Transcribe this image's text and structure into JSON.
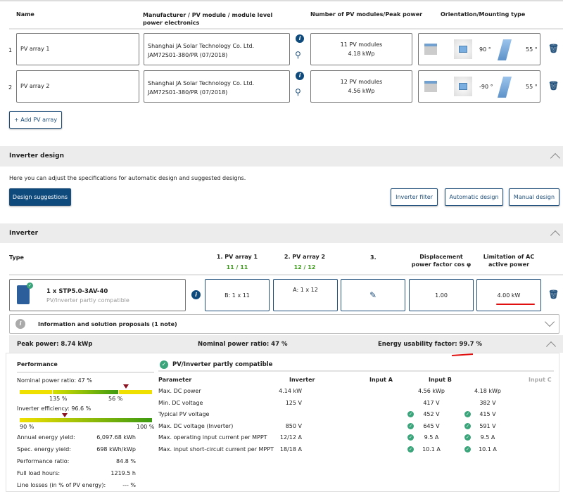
{
  "arrays": {
    "headers": [
      "Name",
      "Manufacturer / PV module / module level power electronics",
      "Number of PV modules/Peak power",
      "Orientation/Mounting type"
    ],
    "rows": [
      {
        "index": "1",
        "name": "PV array 1",
        "manufacturer": "Shanghai JA Solar Technology Co. Ltd.",
        "module": "JAM72S01-380/PR (07/2018)",
        "modules": "11 PV modules",
        "peak": "4.18 kWp",
        "azimuth": "90 °",
        "tilt": "55 °"
      },
      {
        "index": "2",
        "name": "PV array 2",
        "manufacturer": "Shanghai JA Solar Technology Co. Ltd.",
        "module": "JAM72S01-380/PR (07/2018)",
        "modules": "12 PV modules",
        "peak": "4.56 kWp",
        "azimuth": "-90 °",
        "tilt": "55 °"
      }
    ],
    "add_label": "+ Add PV array"
  },
  "design": {
    "title": "Inverter design",
    "desc": "Here you can adjust the specifications for automatic design and suggested designs.",
    "suggestions": "Design suggestions",
    "filter": "Inverter filter",
    "automatic": "Automatic design",
    "manual": "Manual design"
  },
  "inverter": {
    "title": "Inverter",
    "col_type": "Type",
    "col1": "1. PV array 1",
    "col1_count": "11 / 11",
    "col2": "2. PV array 2",
    "col2_count": "12 / 12",
    "col3": "3.",
    "col_disp": "Displacement power factor cos φ",
    "col_limit": "Limitation of AC active power",
    "name": "1 x STP5.0-3AV-40",
    "status": "PV/Inverter partly compatible",
    "cell1": "B: 1 x 11",
    "cell2": "A: 1 x 12",
    "disp": "1.00",
    "limit": "4.00 kW",
    "info": "Information and solution proposals (1 note)"
  },
  "summary": {
    "peak": "Peak power: 8.74 kWp",
    "ratio": "Nominal power ratio: 47 %",
    "usability": "Energy usability factor: 99.7 %"
  },
  "performance": {
    "title": "Performance",
    "npr_label": "Nominal power ratio: 47 %",
    "npr_ticks": [
      "135 %",
      "56 %"
    ],
    "eff_label": "Inverter efficiency: 96.6 %",
    "eff_ticks": [
      "90 %",
      "100 %"
    ],
    "eff_value": 96.6,
    "stats": [
      [
        "Annual energy yield:",
        "6,097.68 kWh"
      ],
      [
        "Spec. energy yield:",
        "698 kWh/kWp"
      ],
      [
        "Performance ratio:",
        "84.8 %"
      ],
      [
        "Full load hours:",
        "1219.5 h"
      ],
      [
        "Line losses (in % of PV energy):",
        "--- %"
      ]
    ]
  },
  "compat": {
    "title": "PV/Inverter partly compatible",
    "headers": [
      "Parameter",
      "Inverter",
      "Input A",
      "Input B",
      "Input C"
    ],
    "rows": [
      {
        "p": "Max. DC power",
        "inv": "4.14 kW",
        "a": "4.56 kWp",
        "b": "4.18 kWp",
        "ok": false
      },
      {
        "p": "Min. DC voltage",
        "inv": "125 V",
        "a": "417 V",
        "b": "382 V",
        "ok": false
      },
      {
        "p": "Typical PV voltage",
        "inv": "",
        "a": "452 V",
        "b": "415 V",
        "ok": true
      },
      {
        "p": "Max. DC voltage (Inverter)",
        "inv": "850 V",
        "a": "645 V",
        "b": "591 V",
        "ok": true
      },
      {
        "p": "Max. operating input current per MPPT",
        "inv": "12/12 A",
        "a": "9.5 A",
        "b": "9.5 A",
        "ok": true
      },
      {
        "p": "Max. input short-circuit current per MPPT",
        "inv": "18/18 A",
        "a": "10.1 A",
        "b": "10.1 A",
        "ok": true
      }
    ]
  }
}
